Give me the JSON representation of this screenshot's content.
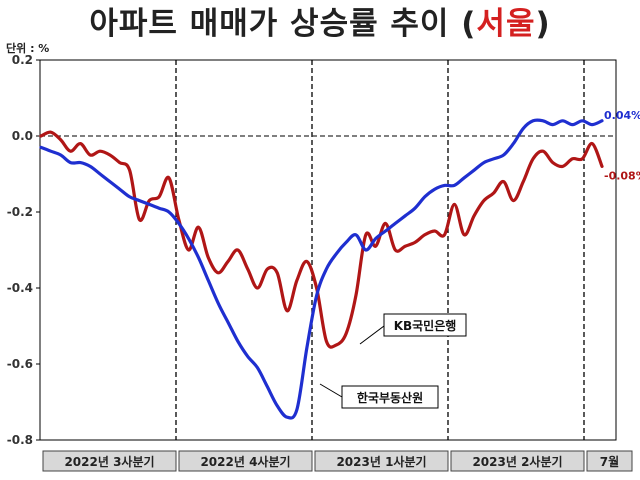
{
  "title_main": "아파트 매매가 상승률 추이",
  "title_open": " (",
  "title_region": "서울",
  "title_close": ")",
  "unit": "단위 : %",
  "colors": {
    "blue": "#1f2fd0",
    "red": "#b01616"
  },
  "chart_data": {
    "type": "line",
    "title": "아파트 매매가 상승률 추이 (서울)",
    "ylabel": "단위 : %",
    "ylim": [
      -0.8,
      0.2
    ],
    "yticks": [
      "0.2",
      "0.0",
      "-0.2",
      "-0.4",
      "-0.6",
      "-0.8"
    ],
    "ytick_values": [
      0.2,
      0.0,
      -0.2,
      -0.4,
      -0.6,
      -0.8
    ],
    "periods": [
      "2022년 3사분기",
      "2022년 4사분기",
      "2023년 1사분기",
      "2023년 2사분기",
      "7월"
    ],
    "reference_line": 0.0,
    "series": [
      {
        "name": "한국부동산원",
        "color": "#1f2fd0",
        "end_label": "0.04%",
        "values": [
          -0.03,
          -0.04,
          -0.05,
          -0.07,
          -0.07,
          -0.08,
          -0.1,
          -0.12,
          -0.14,
          -0.16,
          -0.17,
          -0.18,
          -0.19,
          -0.2,
          -0.23,
          -0.27,
          -0.32,
          -0.38,
          -0.44,
          -0.49,
          -0.54,
          -0.58,
          -0.61,
          -0.66,
          -0.71,
          -0.74,
          -0.72,
          -0.56,
          -0.42,
          -0.35,
          -0.31,
          -0.28,
          -0.26,
          -0.3,
          -0.27,
          -0.25,
          -0.23,
          -0.21,
          -0.19,
          -0.16,
          -0.14,
          -0.13,
          -0.13,
          -0.11,
          -0.09,
          -0.07,
          -0.06,
          -0.05,
          -0.02,
          0.02,
          0.04,
          0.04,
          0.03,
          0.04,
          0.03,
          0.04,
          0.03,
          0.04
        ]
      },
      {
        "name": "KB국민은행",
        "color": "#b01616",
        "end_label": "-0.08%",
        "values": [
          0.0,
          0.01,
          -0.01,
          -0.04,
          -0.02,
          -0.05,
          -0.04,
          -0.05,
          -0.07,
          -0.09,
          -0.22,
          -0.17,
          -0.16,
          -0.11,
          -0.22,
          -0.3,
          -0.24,
          -0.32,
          -0.36,
          -0.33,
          -0.3,
          -0.35,
          -0.4,
          -0.35,
          -0.36,
          -0.46,
          -0.38,
          -0.33,
          -0.4,
          -0.54,
          -0.55,
          -0.52,
          -0.42,
          -0.26,
          -0.29,
          -0.23,
          -0.3,
          -0.29,
          -0.28,
          -0.26,
          -0.25,
          -0.26,
          -0.18,
          -0.26,
          -0.21,
          -0.17,
          -0.15,
          -0.12,
          -0.17,
          -0.12,
          -0.06,
          -0.04,
          -0.07,
          -0.08,
          -0.06,
          -0.06,
          -0.02,
          -0.08
        ]
      }
    ],
    "annotations": [
      "KB국민은행",
      "한국부동산원"
    ]
  }
}
